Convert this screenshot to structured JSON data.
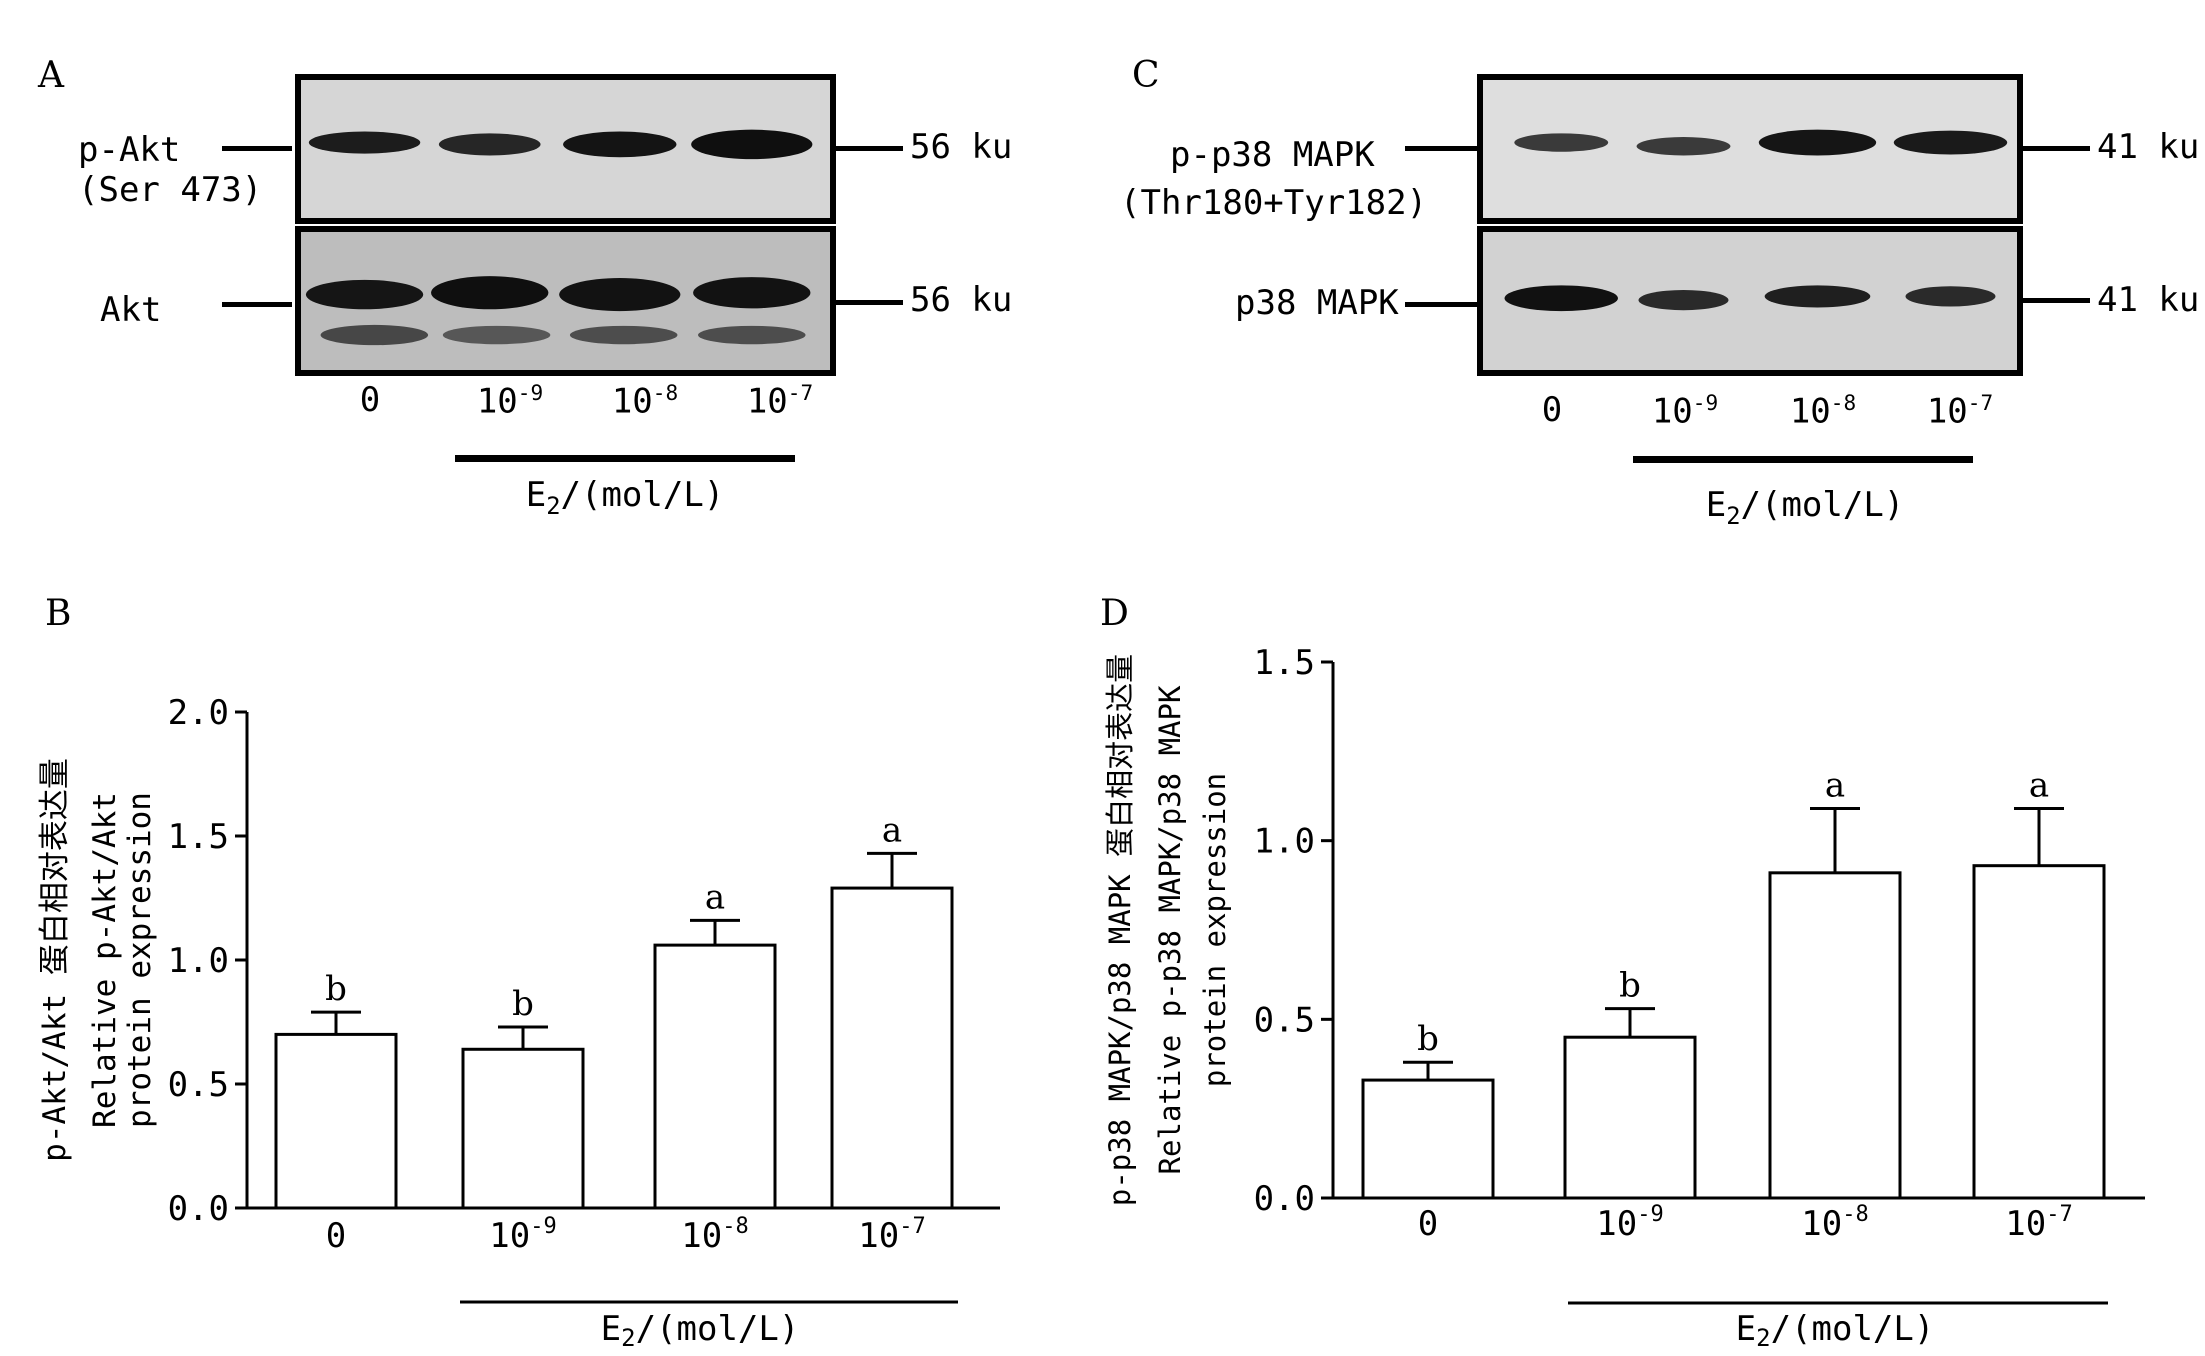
{
  "panels": {
    "A": {
      "letter": "A",
      "rows": [
        {
          "label_line1": "p-Akt",
          "label_line2": "(Ser 473)",
          "marker": "56 ku"
        },
        {
          "label_line1": "Akt",
          "label_line2": "",
          "marker": "56 ku"
        }
      ],
      "lanes": [
        "0",
        "10",
        "10",
        "10"
      ],
      "lane_exponents": [
        "",
        "-9",
        "-8",
        "-7"
      ],
      "treatment_label_main": "E",
      "treatment_label_sub": "2",
      "treatment_label_unit": "/(mol/L)"
    },
    "C": {
      "letter": "C",
      "rows": [
        {
          "label_line1": "p-p38 MAPK",
          "label_line2": "(Thr180+Tyr182)",
          "marker": "41 ku"
        },
        {
          "label_line1": "p38 MAPK",
          "label_line2": "",
          "marker": "41 ku"
        }
      ],
      "lanes": [
        "0",
        "10",
        "10",
        "10"
      ],
      "lane_exponents": [
        "",
        "-9",
        "-8",
        "-7"
      ],
      "treatment_label_main": "E",
      "treatment_label_sub": "2",
      "treatment_label_unit": "/(mol/L)"
    }
  },
  "chart_data": [
    {
      "panel": "B",
      "type": "bar",
      "categories": [
        "0",
        "10",
        "10",
        "10"
      ],
      "category_exponents": [
        "",
        "-9",
        "-8",
        "-7"
      ],
      "values": [
        0.7,
        0.64,
        1.06,
        1.29
      ],
      "errors": [
        0.09,
        0.09,
        0.1,
        0.14
      ],
      "significance": [
        "b",
        "b",
        "a",
        "a"
      ],
      "ylabel_lines": [
        "p-Akt/Akt 蛋白相对表达量",
        "Relative p-Akt/Akt",
        "protein expression"
      ],
      "xlabel_main": "E",
      "xlabel_sub": "2",
      "xlabel_unit": "/(mol/L)",
      "ylim": [
        0,
        2.0
      ],
      "yticks": [
        "0.0",
        "0.5",
        "1.0",
        "1.5",
        "2.0"
      ],
      "ytick_values": [
        0,
        0.5,
        1.0,
        1.5,
        2.0
      ],
      "grid": false
    },
    {
      "panel": "D",
      "type": "bar",
      "categories": [
        "0",
        "10",
        "10",
        "10"
      ],
      "category_exponents": [
        "",
        "-9",
        "-8",
        "-7"
      ],
      "values": [
        0.33,
        0.45,
        0.91,
        0.93
      ],
      "errors": [
        0.05,
        0.08,
        0.18,
        0.16
      ],
      "significance": [
        "b",
        "b",
        "a",
        "a"
      ],
      "ylabel_lines": [
        "p-p38 MAPK/p38 MAPK 蛋白相对表达量",
        "Relative p-p38 MAPK/p38 MAPK",
        "protein expression"
      ],
      "xlabel_main": "E",
      "xlabel_sub": "2",
      "xlabel_unit": "/(mol/L)",
      "ylim": [
        0,
        1.5
      ],
      "yticks": [
        "0.0",
        "0.5",
        "1.0",
        "1.5"
      ],
      "ytick_values": [
        0,
        0.5,
        1.0,
        1.5
      ],
      "grid": false
    }
  ]
}
